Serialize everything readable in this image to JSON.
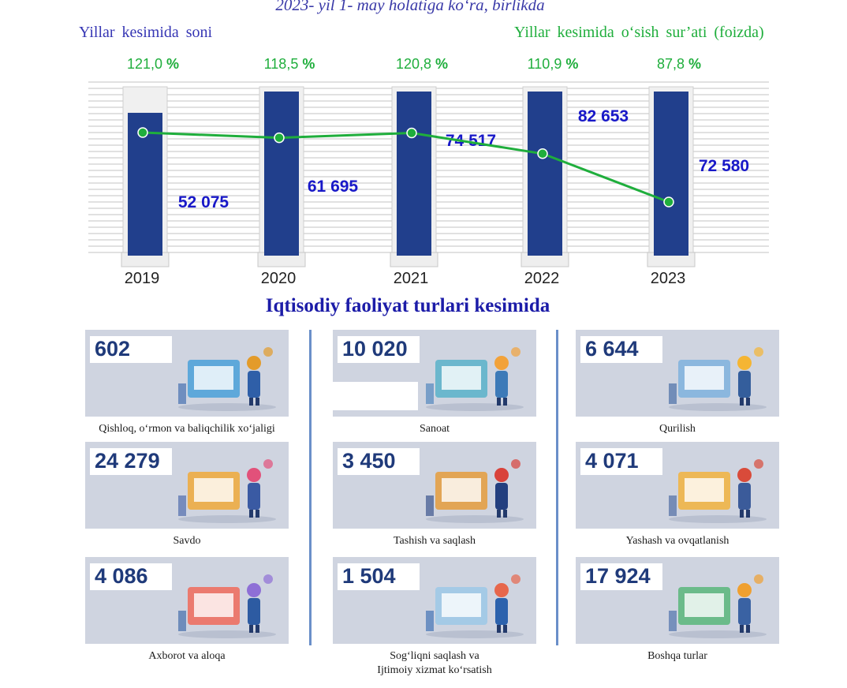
{
  "header": {
    "subtitle": "2023- yil 1- may holatiga ko‘ra, birlikda",
    "legend_count": "Yillar kesimida soni",
    "legend_growth": "Yillar kesimida o‘sish sur’ati (foizda)"
  },
  "chart_data": {
    "type": "bar",
    "categories": [
      "2019",
      "2020",
      "2021",
      "2022",
      "2023"
    ],
    "series": [
      {
        "values": [
          52075,
          61695,
          74517,
          82653,
          72580
        ],
        "labels": [
          "52 075",
          "61 695",
          "74 517",
          "82 653",
          "72 580"
        ],
        "color": "#213f8c"
      },
      {
        "type": "line",
        "values": [
          121.0,
          118.5,
          120.8,
          110.9,
          87.8
        ],
        "labels": [
          "121,0",
          "118,5",
          "120,8",
          "110,9",
          "87,8"
        ],
        "color": "#1fae3c"
      }
    ],
    "percent_sign": "%",
    "ylim": [
      0,
      100000
    ]
  },
  "sectors_title": "Iqtisodiy faoliyat turlari kesimida",
  "sectors": [
    {
      "value": "602",
      "label": "Qishloq, o‘rmon va baliqchilik xo‘jaligi",
      "icon": "agriculture-illustration"
    },
    {
      "value": "10 020",
      "label": "Sanoat",
      "icon": "industry-illustration"
    },
    {
      "value": "6 644",
      "label": "Qurilish",
      "icon": "construction-illustration"
    },
    {
      "value": "24 279",
      "label": "Savdo",
      "icon": "trade-illustration"
    },
    {
      "value": "3 450",
      "label": "Tashish va saqlash",
      "icon": "transport-illustration"
    },
    {
      "value": "4 071",
      "label": "Yashash va ovqatlanish",
      "icon": "hospitality-illustration"
    },
    {
      "value": "4 086",
      "label": "Axborot va aloqa",
      "icon": "it-illustration"
    },
    {
      "value": "1 504",
      "label": "Sog‘liqni saqlash va\nIjtimoiy xizmat ko‘rsatish",
      "icon": "health-illustration"
    },
    {
      "value": "17 924",
      "label": "Boshqa turlar",
      "icon": "other-illustration"
    }
  ]
}
